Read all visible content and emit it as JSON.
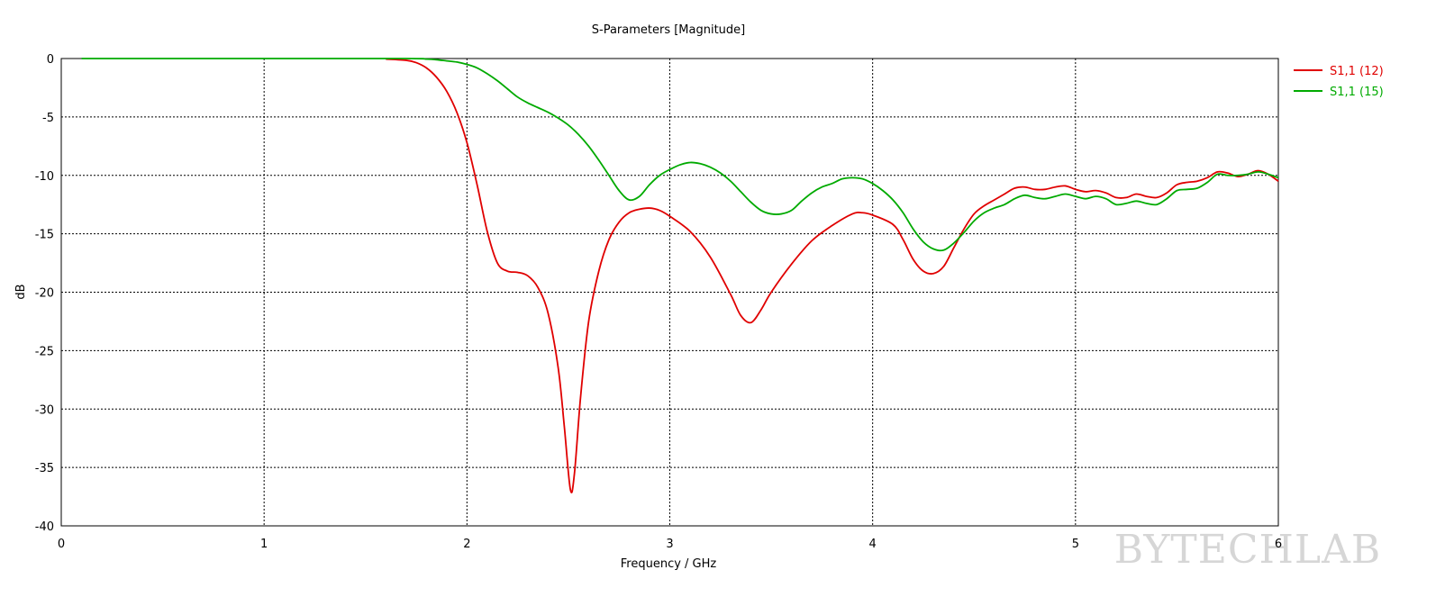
{
  "chart_data": {
    "type": "line",
    "title": "S-Parameters [Magnitude]",
    "xlabel": "Frequency / GHz",
    "ylabel": "dB",
    "xlim": [
      0,
      6
    ],
    "ylim": [
      -40,
      0
    ],
    "x_ticks": [
      0,
      1,
      2,
      3,
      4,
      5,
      6
    ],
    "y_ticks": [
      0,
      -5,
      -10,
      -15,
      -20,
      -25,
      -30,
      -35,
      -40
    ],
    "grid": true,
    "grid_style": "dotted",
    "legend_position": "top-right",
    "series": [
      {
        "name": "S1,1 (12)",
        "color": "#e00000",
        "points": [
          [
            1.6,
            -0.05
          ],
          [
            1.7,
            -0.15
          ],
          [
            1.75,
            -0.35
          ],
          [
            1.8,
            -0.8
          ],
          [
            1.85,
            -1.6
          ],
          [
            1.9,
            -2.8
          ],
          [
            1.95,
            -4.6
          ],
          [
            2.0,
            -7.2
          ],
          [
            2.05,
            -10.8
          ],
          [
            2.1,
            -14.8
          ],
          [
            2.15,
            -17.5
          ],
          [
            2.2,
            -18.2
          ],
          [
            2.25,
            -18.3
          ],
          [
            2.3,
            -18.6
          ],
          [
            2.35,
            -19.6
          ],
          [
            2.4,
            -21.8
          ],
          [
            2.45,
            -26.5
          ],
          [
            2.48,
            -31.5
          ],
          [
            2.51,
            -36.9
          ],
          [
            2.53,
            -35.5
          ],
          [
            2.56,
            -29.0
          ],
          [
            2.6,
            -22.5
          ],
          [
            2.65,
            -18.2
          ],
          [
            2.7,
            -15.5
          ],
          [
            2.75,
            -14.0
          ],
          [
            2.8,
            -13.2
          ],
          [
            2.85,
            -12.9
          ],
          [
            2.9,
            -12.8
          ],
          [
            2.95,
            -13.0
          ],
          [
            3.0,
            -13.5
          ],
          [
            3.1,
            -14.8
          ],
          [
            3.2,
            -17.0
          ],
          [
            3.3,
            -20.2
          ],
          [
            3.35,
            -22.0
          ],
          [
            3.4,
            -22.6
          ],
          [
            3.45,
            -21.5
          ],
          [
            3.5,
            -20.0
          ],
          [
            3.6,
            -17.6
          ],
          [
            3.7,
            -15.6
          ],
          [
            3.8,
            -14.3
          ],
          [
            3.9,
            -13.3
          ],
          [
            3.95,
            -13.2
          ],
          [
            4.0,
            -13.4
          ],
          [
            4.1,
            -14.2
          ],
          [
            4.15,
            -15.5
          ],
          [
            4.2,
            -17.2
          ],
          [
            4.25,
            -18.2
          ],
          [
            4.3,
            -18.4
          ],
          [
            4.35,
            -17.8
          ],
          [
            4.4,
            -16.2
          ],
          [
            4.45,
            -14.6
          ],
          [
            4.5,
            -13.3
          ],
          [
            4.55,
            -12.6
          ],
          [
            4.6,
            -12.1
          ],
          [
            4.65,
            -11.6
          ],
          [
            4.7,
            -11.1
          ],
          [
            4.75,
            -11.0
          ],
          [
            4.8,
            -11.2
          ],
          [
            4.85,
            -11.2
          ],
          [
            4.9,
            -11.0
          ],
          [
            4.95,
            -10.9
          ],
          [
            5.0,
            -11.2
          ],
          [
            5.05,
            -11.4
          ],
          [
            5.1,
            -11.3
          ],
          [
            5.15,
            -11.5
          ],
          [
            5.2,
            -11.9
          ],
          [
            5.25,
            -11.9
          ],
          [
            5.3,
            -11.6
          ],
          [
            5.35,
            -11.8
          ],
          [
            5.4,
            -11.9
          ],
          [
            5.45,
            -11.5
          ],
          [
            5.5,
            -10.8
          ],
          [
            5.55,
            -10.6
          ],
          [
            5.6,
            -10.5
          ],
          [
            5.65,
            -10.2
          ],
          [
            5.7,
            -9.7
          ],
          [
            5.75,
            -9.8
          ],
          [
            5.8,
            -10.1
          ],
          [
            5.85,
            -9.9
          ],
          [
            5.9,
            -9.6
          ],
          [
            5.95,
            -9.9
          ],
          [
            6.0,
            -10.5
          ]
        ]
      },
      {
        "name": "S1,1 (15)",
        "color": "#00aa00",
        "points": [
          [
            0.1,
            0.0
          ],
          [
            1.0,
            0.0
          ],
          [
            1.7,
            0.0
          ],
          [
            1.8,
            -0.05
          ],
          [
            1.85,
            -0.1
          ],
          [
            1.9,
            -0.2
          ],
          [
            1.95,
            -0.3
          ],
          [
            2.0,
            -0.5
          ],
          [
            2.05,
            -0.8
          ],
          [
            2.1,
            -1.3
          ],
          [
            2.15,
            -1.9
          ],
          [
            2.2,
            -2.6
          ],
          [
            2.25,
            -3.3
          ],
          [
            2.3,
            -3.8
          ],
          [
            2.35,
            -4.2
          ],
          [
            2.4,
            -4.6
          ],
          [
            2.45,
            -5.1
          ],
          [
            2.5,
            -5.7
          ],
          [
            2.55,
            -6.5
          ],
          [
            2.6,
            -7.5
          ],
          [
            2.65,
            -8.7
          ],
          [
            2.7,
            -10.0
          ],
          [
            2.75,
            -11.3
          ],
          [
            2.8,
            -12.1
          ],
          [
            2.85,
            -11.8
          ],
          [
            2.9,
            -10.8
          ],
          [
            2.95,
            -10.0
          ],
          [
            3.0,
            -9.5
          ],
          [
            3.05,
            -9.1
          ],
          [
            3.1,
            -8.9
          ],
          [
            3.15,
            -9.0
          ],
          [
            3.2,
            -9.3
          ],
          [
            3.25,
            -9.8
          ],
          [
            3.3,
            -10.5
          ],
          [
            3.35,
            -11.4
          ],
          [
            3.4,
            -12.3
          ],
          [
            3.45,
            -13.0
          ],
          [
            3.5,
            -13.3
          ],
          [
            3.55,
            -13.3
          ],
          [
            3.6,
            -13.0
          ],
          [
            3.65,
            -12.2
          ],
          [
            3.7,
            -11.5
          ],
          [
            3.75,
            -11.0
          ],
          [
            3.8,
            -10.7
          ],
          [
            3.85,
            -10.3
          ],
          [
            3.9,
            -10.2
          ],
          [
            3.95,
            -10.3
          ],
          [
            4.0,
            -10.7
          ],
          [
            4.05,
            -11.3
          ],
          [
            4.1,
            -12.1
          ],
          [
            4.15,
            -13.2
          ],
          [
            4.2,
            -14.6
          ],
          [
            4.25,
            -15.7
          ],
          [
            4.3,
            -16.3
          ],
          [
            4.35,
            -16.4
          ],
          [
            4.4,
            -15.8
          ],
          [
            4.45,
            -14.9
          ],
          [
            4.5,
            -13.9
          ],
          [
            4.55,
            -13.2
          ],
          [
            4.6,
            -12.8
          ],
          [
            4.65,
            -12.5
          ],
          [
            4.7,
            -12.0
          ],
          [
            4.75,
            -11.7
          ],
          [
            4.8,
            -11.9
          ],
          [
            4.85,
            -12.0
          ],
          [
            4.9,
            -11.8
          ],
          [
            4.95,
            -11.6
          ],
          [
            5.0,
            -11.8
          ],
          [
            5.05,
            -12.0
          ],
          [
            5.1,
            -11.8
          ],
          [
            5.15,
            -12.0
          ],
          [
            5.2,
            -12.5
          ],
          [
            5.25,
            -12.4
          ],
          [
            5.3,
            -12.2
          ],
          [
            5.35,
            -12.4
          ],
          [
            5.4,
            -12.5
          ],
          [
            5.45,
            -12.0
          ],
          [
            5.5,
            -11.3
          ],
          [
            5.55,
            -11.2
          ],
          [
            5.6,
            -11.1
          ],
          [
            5.65,
            -10.6
          ],
          [
            5.7,
            -9.9
          ],
          [
            5.75,
            -10.0
          ],
          [
            5.8,
            -10.0
          ],
          [
            5.85,
            -9.9
          ],
          [
            5.9,
            -9.7
          ],
          [
            5.95,
            -9.9
          ],
          [
            6.0,
            -10.2
          ]
        ]
      }
    ]
  },
  "watermark": "BYTECHLAB"
}
